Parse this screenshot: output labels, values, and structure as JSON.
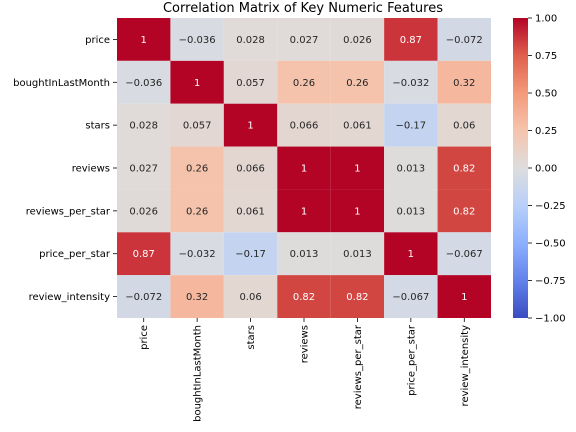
{
  "chart_data": {
    "type": "heatmap",
    "title": "Correlation Matrix of Key Numeric Features",
    "xlabel": "",
    "ylabel": "",
    "variables": [
      "price",
      "boughtInLastMonth",
      "stars",
      "reviews",
      "reviews_per_star",
      "price_per_star",
      "review_intensity"
    ],
    "matrix": [
      [
        1,
        -0.036,
        0.028,
        0.027,
        0.026,
        0.87,
        -0.072
      ],
      [
        -0.036,
        1,
        0.057,
        0.26,
        0.26,
        -0.032,
        0.32
      ],
      [
        0.028,
        0.057,
        1,
        0.066,
        0.061,
        -0.17,
        0.06
      ],
      [
        0.027,
        0.26,
        0.066,
        1,
        1,
        0.013,
        0.82
      ],
      [
        0.026,
        0.26,
        0.061,
        1,
        1,
        0.013,
        0.82
      ],
      [
        0.87,
        -0.032,
        -0.17,
        0.013,
        0.013,
        1,
        -0.067
      ],
      [
        -0.072,
        0.32,
        0.06,
        0.82,
        0.82,
        -0.067,
        1
      ]
    ],
    "colormap": "coolwarm",
    "vmin": -1,
    "vmax": 1,
    "colorbar_ticks": [
      "1.00",
      "0.75",
      "0.50",
      "0.25",
      "0.00",
      "−0.25",
      "−0.50",
      "−0.75",
      "−1.00"
    ],
    "colorbar_tick_values": [
      1,
      0.75,
      0.5,
      0.25,
      0,
      -0.25,
      -0.5,
      -0.75,
      -1
    ],
    "annotations": true,
    "grid": false
  },
  "colors": {
    "cool_end": "#3b4cc0",
    "neutral": "#dddddd",
    "warm_end": "#b40426",
    "cell_border": "#ffffff"
  }
}
